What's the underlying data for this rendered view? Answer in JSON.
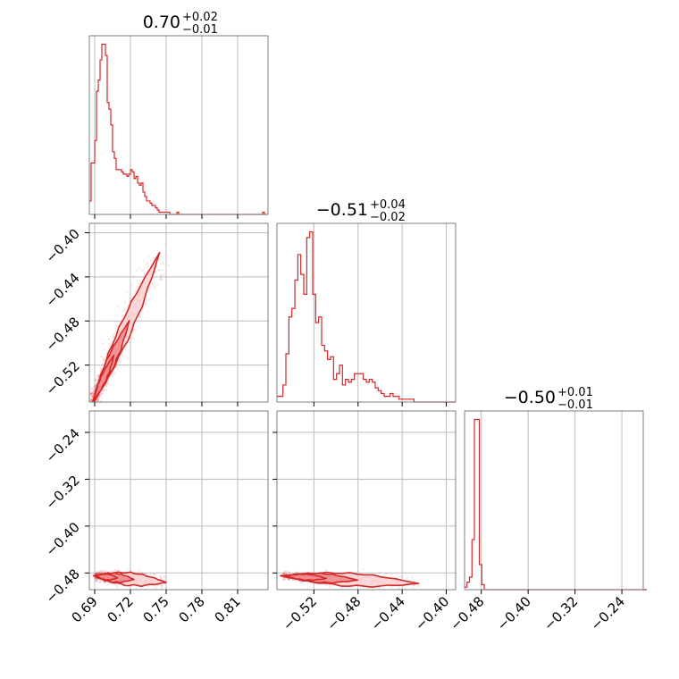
{
  "chart_data": {
    "type": "corner",
    "colors": {
      "accent": "#d62728",
      "fill_inner": "#f08a8a",
      "fill_outer": "#fbd3d3",
      "grid": "#bdbdbd"
    },
    "grid": true,
    "params": [
      {
        "title_main": "0.70",
        "title_sup": "+0.02",
        "title_sub": "−0.01"
      },
      {
        "title_main": "−0.51",
        "title_sup": "+0.04",
        "title_sub": "−0.02"
      },
      {
        "title_main": "−0.50",
        "title_sup": "+0.01",
        "title_sub": "−0.01"
      }
    ],
    "axes": {
      "p0": {
        "range": [
          0.6855,
          0.8355
        ],
        "ticks": [
          0.69,
          0.72,
          0.75,
          0.78,
          0.81
        ],
        "tick_labels": [
          "0.69",
          "0.72",
          "0.75",
          "0.78",
          "0.81"
        ]
      },
      "p1": {
        "range": [
          -0.5535,
          -0.3915
        ],
        "ticks": [
          -0.52,
          -0.48,
          -0.44,
          -0.4
        ],
        "tick_labels": [
          "−0.52",
          "−0.48",
          "−0.44",
          "−0.40"
        ]
      },
      "p2": {
        "range": [
          -0.5085,
          -0.2035
        ],
        "ticks": [
          -0.48,
          -0.4,
          -0.32,
          -0.24
        ],
        "tick_labels": [
          "−0.48",
          "−0.40",
          "−0.32",
          "−0.24"
        ]
      }
    },
    "histograms": {
      "p0": {
        "bin_start": 0.6855,
        "bin_width": 0.0015,
        "counts": [
          6,
          23,
          23,
          33,
          55,
          60,
          69,
          76,
          76,
          71,
          50,
          47,
          40,
          28,
          25,
          20,
          20,
          20,
          19,
          18,
          18,
          17,
          18,
          20,
          19,
          16,
          17,
          14,
          13,
          14,
          10,
          8,
          6,
          6,
          5,
          4,
          4,
          3,
          2,
          1,
          1,
          1,
          1,
          1,
          1,
          0,
          0,
          0,
          0,
          1,
          0,
          0,
          0,
          0,
          0,
          0,
          0,
          0,
          0,
          0,
          0,
          0,
          0,
          0,
          0,
          0,
          0,
          0,
          0,
          0,
          0,
          0,
          0,
          0,
          0,
          0,
          0,
          0,
          0,
          0,
          0,
          0,
          0,
          0,
          0,
          0,
          0,
          0,
          0,
          0,
          0,
          0,
          0,
          0,
          0,
          0,
          0,
          1,
          0,
          0
        ]
      },
      "p1": {
        "bin_start": -0.5535,
        "bin_width": 0.0027,
        "counts": [
          2,
          2,
          6,
          17,
          30,
          33,
          43,
          52,
          45,
          38,
          58,
          60,
          38,
          28,
          30,
          20,
          18,
          15,
          16,
          8,
          10,
          13,
          6,
          8,
          7,
          8,
          10,
          10,
          10,
          8,
          7,
          8,
          7,
          5,
          4,
          3,
          2,
          2,
          3,
          2,
          2,
          1,
          1,
          1,
          1,
          1,
          0,
          0,
          0,
          0,
          0,
          0,
          0,
          0,
          0,
          0,
          0,
          0,
          0,
          0
        ]
      },
      "p2": {
        "bin_start": -0.5085,
        "bin_width": 0.0042,
        "counts": [
          1,
          3,
          5,
          20,
          68,
          68,
          10,
          2,
          0,
          0,
          0,
          0,
          0,
          0,
          0,
          0,
          0,
          0,
          0,
          0,
          0,
          0,
          0,
          0,
          0,
          0,
          0,
          0,
          0,
          0,
          0,
          0,
          0,
          0,
          0,
          0,
          0,
          0,
          0,
          0,
          0,
          0,
          0,
          0,
          0,
          0,
          0,
          0,
          0,
          0,
          0,
          0,
          0,
          0,
          0,
          0,
          0,
          0,
          0,
          0,
          0,
          0,
          0,
          0,
          0,
          0,
          0,
          0,
          0,
          0,
          0,
          0,
          0,
          0
        ]
      }
    },
    "pairs": [
      {
        "x": "p0",
        "y": "p1",
        "trend": [
          [
            0.688,
            -0.555
          ],
          [
            0.7445,
            -0.418
          ]
        ],
        "spread_x": 0.004,
        "n_points": 900
      },
      {
        "x": "p0",
        "y": "p2",
        "trend": [
          [
            0.69,
            -0.485
          ],
          [
            0.75,
            -0.496
          ]
        ],
        "spread_y": 0.006,
        "n_points": 700
      },
      {
        "x": "p1",
        "y": "p2",
        "trend": [
          [
            -0.548,
            -0.485
          ],
          [
            -0.425,
            -0.498
          ]
        ],
        "spread_y": 0.005,
        "n_points": 700
      }
    ]
  }
}
